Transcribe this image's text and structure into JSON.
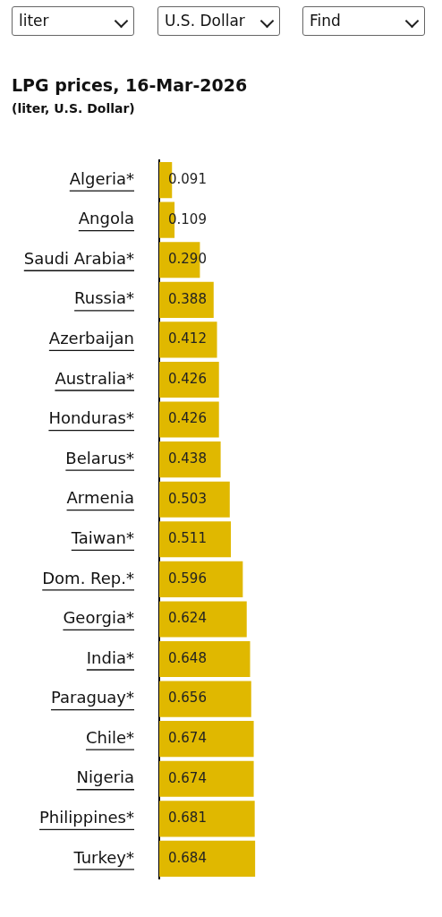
{
  "chart_data": {
    "type": "bar",
    "orientation": "horizontal",
    "title": "LPG prices, 16-Mar-2026",
    "subtitle": "(liter, U.S. Dollar)",
    "annotations": [
      "liter",
      "U.S. Dollar",
      "Find"
    ],
    "categories": [
      "Algeria*",
      "Angola",
      "Saudi Arabia*",
      "Russia*",
      "Azerbaijan",
      "Australia*",
      "Honduras*",
      "Belarus*",
      "Armenia",
      "Taiwan*",
      "Dom. Rep.*",
      "Georgia*",
      "India*",
      "Paraguay*",
      "Chile*",
      "Nigeria",
      "Philippines*",
      "Turkey*"
    ],
    "values": [
      0.091,
      0.109,
      0.29,
      0.388,
      0.412,
      0.426,
      0.426,
      0.438,
      0.503,
      0.511,
      0.596,
      0.624,
      0.648,
      0.656,
      0.674,
      0.674,
      0.681,
      0.684
    ],
    "value_labels": [
      "0.091",
      "0.109",
      "0.290",
      "0.388",
      "0.412",
      "0.426",
      "0.426",
      "0.438",
      "0.503",
      "0.511",
      "0.596",
      "0.624",
      "0.648",
      "0.656",
      "0.674",
      "0.674",
      "0.681",
      "0.684"
    ],
    "color": "#e0b800",
    "legend": false
  }
}
